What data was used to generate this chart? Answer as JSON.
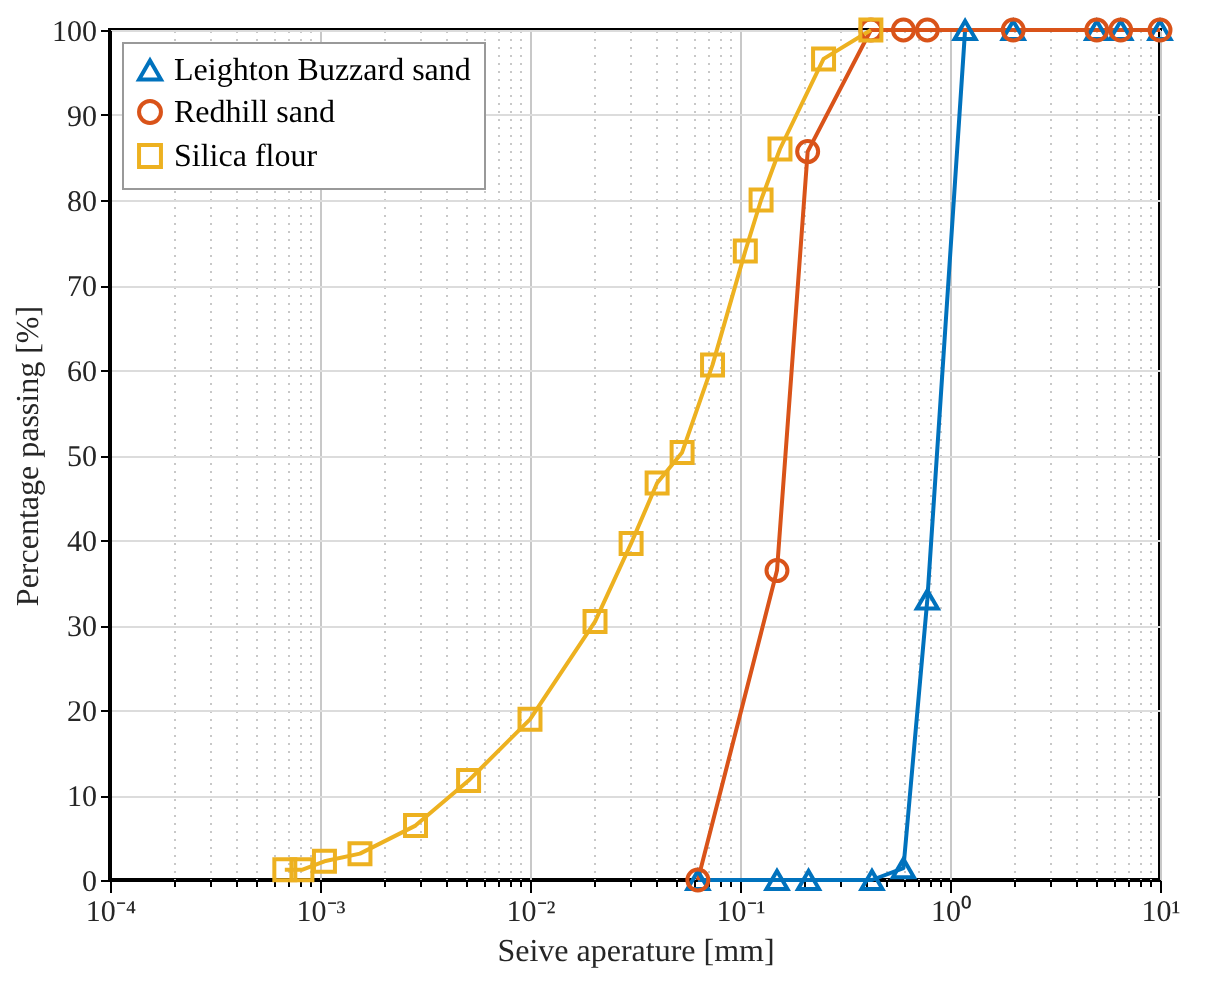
{
  "chart_data": {
    "type": "line",
    "xlabel": "Seive aperature [mm]",
    "ylabel": "Percentage passing [%]",
    "log": "x",
    "grid": true,
    "legend": "top left",
    "line_style": "solid",
    "xlim": [
      0.0001,
      10
    ],
    "ylim": [
      0,
      100
    ],
    "xticks": [
      {
        "value": 0.0001,
        "label": "10⁻⁴"
      },
      {
        "value": 0.001,
        "label": "10⁻³"
      },
      {
        "value": 0.01,
        "label": "10⁻²"
      },
      {
        "value": 0.1,
        "label": "10⁻¹"
      },
      {
        "value": 1,
        "label": "10⁰"
      },
      {
        "value": 10,
        "label": "10¹"
      },
      {
        "value": 0.0002,
        "label": null
      },
      {
        "value": 0.0003,
        "label": null
      },
      {
        "value": 0.0004,
        "label": null
      },
      {
        "value": 0.0005,
        "label": null
      },
      {
        "value": 0.0006,
        "label": null
      },
      {
        "value": 0.0007,
        "label": null
      },
      {
        "value": 0.0008,
        "label": null
      },
      {
        "value": 0.0009,
        "label": null
      },
      {
        "value": 0.002,
        "label": null
      },
      {
        "value": 0.003,
        "label": null
      },
      {
        "value": 0.004,
        "label": null
      },
      {
        "value": 0.005,
        "label": null
      },
      {
        "value": 0.006,
        "label": null
      },
      {
        "value": 0.007,
        "label": null
      },
      {
        "value": 0.008,
        "label": null
      },
      {
        "value": 0.009,
        "label": null
      },
      {
        "value": 0.02,
        "label": null
      },
      {
        "value": 0.03,
        "label": null
      },
      {
        "value": 0.04,
        "label": null
      },
      {
        "value": 0.05,
        "label": null
      },
      {
        "value": 0.06,
        "label": null
      },
      {
        "value": 0.07,
        "label": null
      },
      {
        "value": 0.08,
        "label": null
      },
      {
        "value": 0.09,
        "label": null
      },
      {
        "value": 0.2,
        "label": null
      },
      {
        "value": 0.3,
        "label": null
      },
      {
        "value": 0.4,
        "label": null
      },
      {
        "value": 0.5,
        "label": null
      },
      {
        "value": 0.6,
        "label": null
      },
      {
        "value": 0.7,
        "label": null
      },
      {
        "value": 0.8,
        "label": null
      },
      {
        "value": 0.9,
        "label": null
      },
      {
        "value": 2,
        "label": null
      },
      {
        "value": 3,
        "label": null
      },
      {
        "value": 4,
        "label": null
      },
      {
        "value": 5,
        "label": null
      },
      {
        "value": 6,
        "label": null
      },
      {
        "value": 7,
        "label": null
      },
      {
        "value": 8,
        "label": null
      },
      {
        "value": 9,
        "label": null
      }
    ],
    "yticks": [
      0,
      10,
      20,
      30,
      40,
      50,
      60,
      70,
      80,
      90,
      100
    ],
    "series": [
      {
        "name": "Leighton Buzzard sand",
        "color": "#0072bd",
        "marker": "triangle",
        "x": [
          0.063,
          0.15,
          0.212,
          0.425,
          0.6,
          0.78,
          1.18,
          2,
          5,
          6.5,
          10
        ],
        "values": [
          0,
          0,
          0,
          0,
          1.4,
          33,
          100,
          100,
          100,
          100,
          100
        ]
      },
      {
        "name": "Redhill sand",
        "color": "#d95319",
        "marker": "circle",
        "x": [
          0.063,
          0.15,
          0.21,
          0.42,
          0.6,
          0.78,
          2,
          5,
          6.5,
          10
        ],
        "values": [
          0,
          36.4,
          85.7,
          100,
          100,
          100,
          100,
          100,
          100,
          100
        ]
      },
      {
        "name": "Silica flour",
        "color": "#edb120",
        "marker": "square",
        "x": [
          0.00068,
          0.00082,
          0.00105,
          0.00155,
          0.00285,
          0.0051,
          0.01,
          0.0204,
          0.0303,
          0.0403,
          0.053,
          0.074,
          0.106,
          0.126,
          0.155,
          0.25,
          0.42
        ],
        "values": [
          1.2,
          1.2,
          2.2,
          3.1,
          6.4,
          11.7,
          18.9,
          30.4,
          39.6,
          46.7,
          50.3,
          60.6,
          74,
          80,
          86,
          96.6,
          100
        ]
      }
    ]
  }
}
